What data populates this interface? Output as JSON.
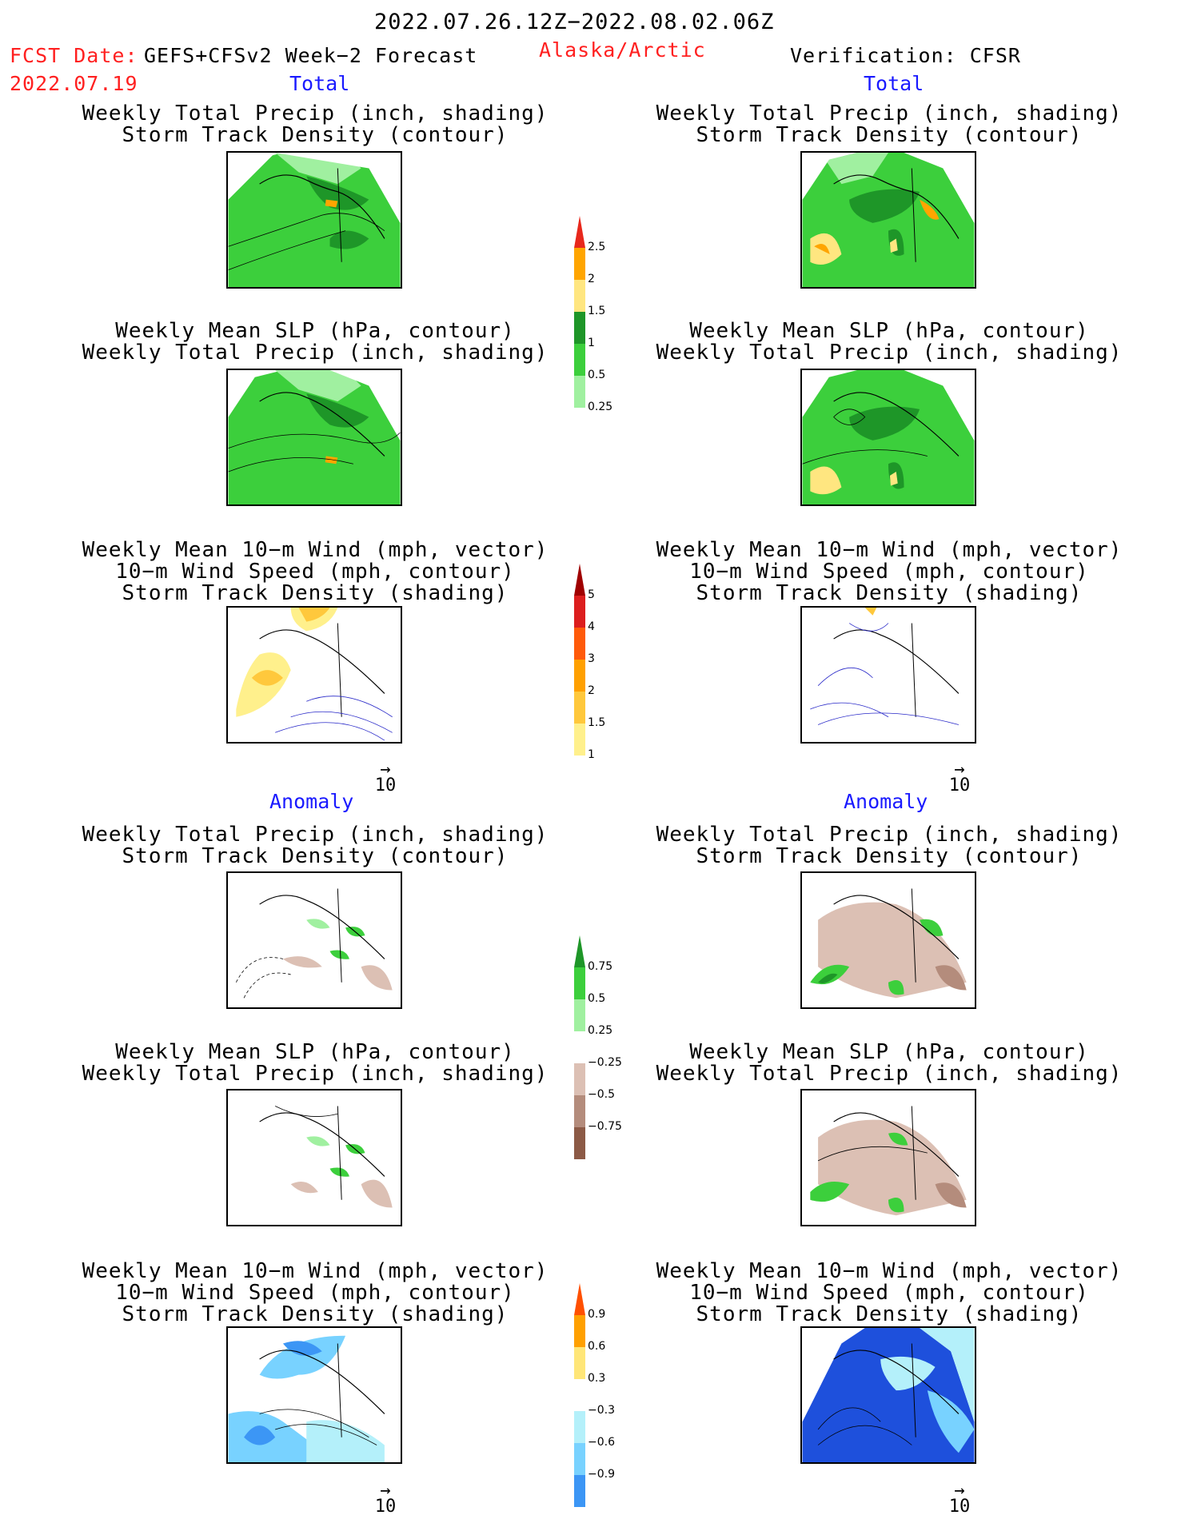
{
  "header": {
    "period": "2022.07.26.12Z−2022.08.02.06Z",
    "fcst_label": "FCST Date:",
    "fcst_model": "GEFS+CFSv2 Week−2 Forecast",
    "fcst_date": "2022.07.19",
    "region": "Alaska/Arctic",
    "verification": "Verification: CFSR"
  },
  "sections": {
    "total": "Total",
    "anomaly": "Anomaly"
  },
  "titles": {
    "precip_storm": [
      "Weekly Total Precip (inch, shading)",
      "Storm Track Density (contour)"
    ],
    "slp_precip": [
      "Weekly Mean SLP (hPa, contour)",
      "Weekly Total Precip (inch, shading)"
    ],
    "wind_storm": [
      "Weekly Mean 10−m Wind (mph, vector)",
      "10−m Wind Speed (mph, contour)",
      "Storm Track Density (shading)"
    ]
  },
  "reference_vector": "10",
  "colorbars": {
    "precip_total": {
      "labels": [
        "2.5",
        "2",
        "1.5",
        "1",
        "0.5",
        "0.25"
      ],
      "colors": [
        "#e8281c",
        "#ffa500",
        "#ffe680",
        "#1e9628",
        "#3ccf3c",
        "#a0f0a0"
      ]
    },
    "storm_total": {
      "labels": [
        "5",
        "4",
        "3",
        "2",
        "1.5",
        "1"
      ],
      "colors": [
        "#a00000",
        "#dc1e1e",
        "#ff5a0a",
        "#ffa000",
        "#ffc83c",
        "#fff08c"
      ]
    },
    "precip_anom": {
      "labels": [
        "0.75",
        "0.5",
        "0.25",
        "−0.25",
        "−0.5",
        "−0.75"
      ],
      "colors": [
        "#1e9628",
        "#3ccf3c",
        "#a0f0a0",
        "#ffffff",
        "#dcc0b4",
        "#b48c7c",
        "#8c5a46",
        "#643c28"
      ]
    },
    "storm_anom": {
      "labels": [
        "0.9",
        "0.6",
        "0.3",
        "−0.3",
        "−0.6",
        "−0.9"
      ],
      "colors": [
        "#ff5000",
        "#ffa000",
        "#ffe678",
        "#ffffff",
        "#b4f0fa",
        "#78d2ff",
        "#3c96f5",
        "#1e50dc"
      ]
    }
  }
}
